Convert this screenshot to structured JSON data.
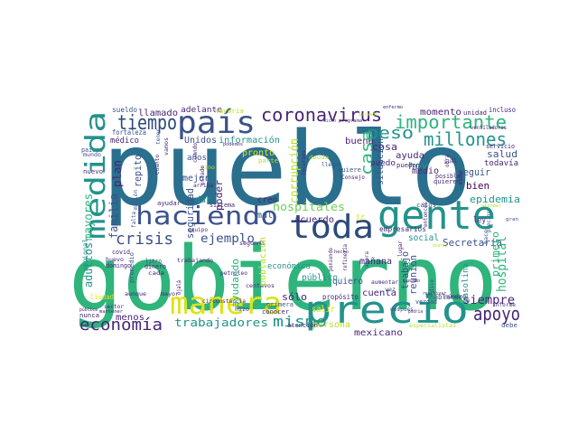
{
  "palette": {
    "blue": "#2a6f8e",
    "blue_dark": "#2c4a7a",
    "teal": "#22938b",
    "green": "#2fb47c",
    "green_light": "#6ccd5a",
    "purple": "#482576",
    "purple_dark": "#440154",
    "indigo": "#3b528b",
    "yellow": "#b5de2b",
    "yellow_light": "#dde318"
  },
  "words": {
    "pueblo": "pueblo",
    "gobierno": "gobierno",
    "precio": "precio",
    "gente": "gente",
    "manera": "manera",
    "haciendo": "haciendo",
    "toda": "toda",
    "pais": "país",
    "medida": "medida",
    "tiempo": "tiempo",
    "coronavirus": "coronavirus",
    "importante": "importante",
    "millones": "millones",
    "apoyo": "apoyo",
    "crisis": "crisis",
    "economia": "economía",
    "casa": "casa",
    "peso": "peso",
    "mismo": "mismo",
    "trabajadores": "trabajadores",
    "ejemplo": "ejemplo",
    "hospitales": "hospitales",
    "hospital": "hospital",
    "siempre": "siempre",
    "mexicano": "mexicano",
    "secretaria": "Secretaría",
    "epidemia": "epidemia",
    "salud": "salud",
    "bien": "bien",
    "seguir": "seguir",
    "hoy": "hoy",
    "medio": "medio",
    "cosa": "cosa",
    "buena": "buena",
    "momento": "momento",
    "unidos": "Unidos",
    "informacion": "información",
    "llamado": "llamado",
    "adelante": "adelante",
    "mayores": "mayores",
    "adultos": "adultos",
    "familia": "familia",
    "plan": "plan",
    "medico": "médico",
    "repito": "repito",
    "seguridad": "seguridad",
    "poder": "poder",
    "creo": "creo",
    "mal": "mal",
    "corrupcion": "corrupción",
    "pronto": "pronto",
    "mejor": "mejor",
    "dar": "dar",
    "anos": "años",
    "acuerdo": "acuerdo",
    "manana": "mañana",
    "social": "social",
    "ayuda": "ayuda",
    "reunion": "reunión",
    "trabajo": "trabajo",
    "quiero": "quiero",
    "publico": "público",
    "solo": "sólo",
    "salir": "salir",
    "persona": "persona",
    "menos": "menos",
    "cuenta": "cuenta",
    "primero": "primero",
    "ayudando": "ayudando",
    "economica": "económica",
    "poblacion": "población",
    "ir": "ir",
    "puedo": "puedo",
    "situacion": "situación",
    "todavia": "todavía",
    "ley": "ley",
    "gasolina": "gasolina",
    "hablando": "hablando",
    "proposito": "propósito",
    "ciudad": "Ciudad",
    "nacional": "nacional",
    "paises": "países",
    "fortaleza": "fortaleza",
    "mayoria": "mayoría",
    "sueldo": "sueldo",
    "unidad": "unidad",
    "incluso": "incluso",
    "servicio": "servicio",
    "nuevo": "nuevo",
    "mundo": "mundo",
    "empresarios": "empresarios",
    "pueden": "pueden",
    "casos": "casos",
    "quiere": "quiere",
    "parte": "parte",
    "primera": "primera",
    "conocer": "conocer",
    "atencion": "atención",
    "debe": "debe",
    "especialistas": "especialistas",
    "verdad": "verdad",
    "posible": "posible",
    "quieren": "quieren",
    "sistema": "sistema",
    "ayudar": "ayudar",
    "arriba": "arriba",
    "sino": "sino",
    "covid": "covid",
    "domingo": "domingo",
    "promedio": "promedio",
    "sector": "sector",
    "nunca": "nunca",
    "aunque": "aunque",
    "mayor": "mayor",
    "litro": "litro",
    "dinero": "dinero",
    "cada": "cada",
    "trabajando": "trabajando",
    "petroleo": "petróleo",
    "segunda": "segunda",
    "centavos": "centavos",
    "hizo": "hizo",
    "vez": "vez",
    "despues": "después",
    "aumentar": "aumentar",
    "equipo": "equipo",
    "deuda": "deuda",
    "informe": "informe",
    "entonces": "entonces",
    "cual": "cuál",
    "consejo": "Consejo",
    "podemos": "podemos",
    "circunstancia": "circunstancia",
    "huevo": "huevo",
    "millon": "millón",
    "falta": "falta",
    "dicho": "dicho",
    "privado": "privado",
    "enfermo": "enfermo",
    "programa": "programa",
    "ventiladores": "ventiladores",
    "hace": "hace",
    "publica": "pública",
    "mantener": "mantener",
    "ahora": "ahora",
    "poniendo": "poniendo",
    "refineria": "refinería",
    "atender": "atender",
    "precios": "precios",
    "diario": "diario",
    "hecho": "hecho",
    "sabe": "sabe",
    "ojala": "ojalá",
    "pasado": "pasado",
    "reactivar": "reactivar",
    "numero": "número",
    "tener": "tener",
    "cuando": "cuando",
    "estado": "estado",
    "llegar": "llegar",
    "recursos": "recursos",
    "cuanto": "cuanto",
    "dice": "dice",
    "vamos": "vamos",
    "obra": "obra",
    "gran": "gran",
    "podria": "podría",
    "lugar": "lugar"
  }
}
